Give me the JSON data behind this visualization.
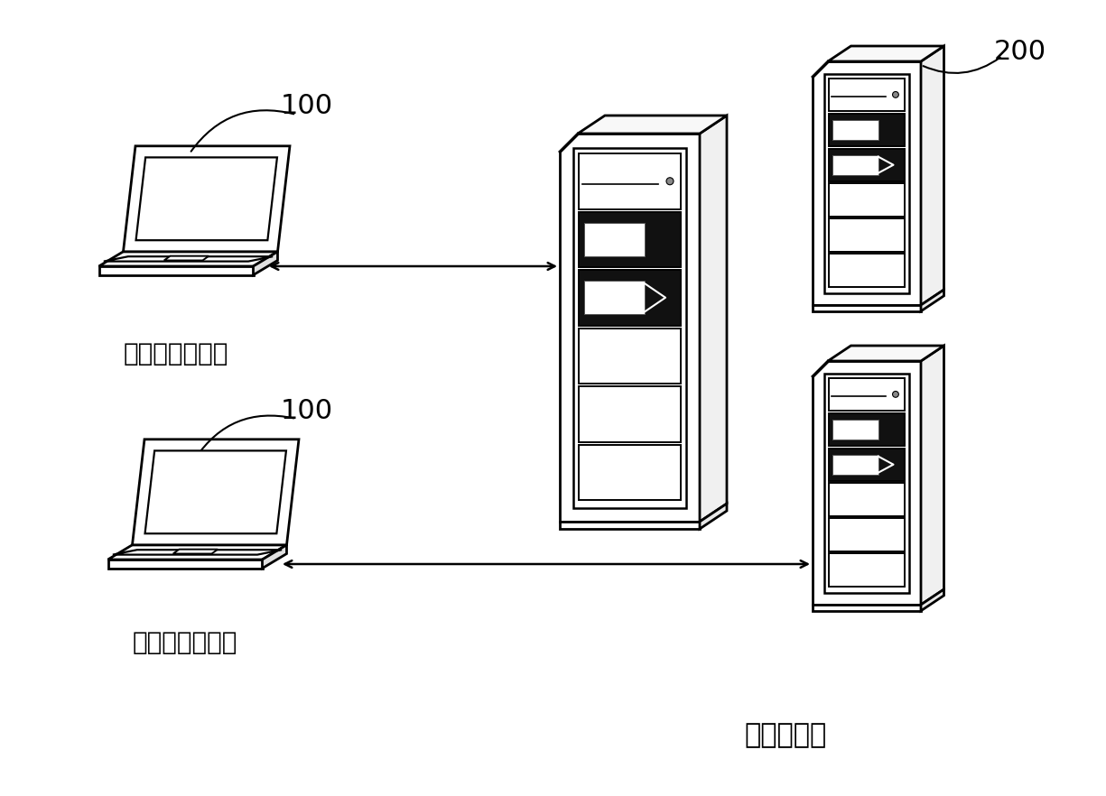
{
  "bg_color": "#ffffff",
  "label_client": "文本获取客户端",
  "label_server": "文本服务端",
  "label_100_top": "100",
  "label_100_bottom": "100",
  "label_200": "200",
  "label_fontsize": 20,
  "number_fontsize": 22,
  "line_color": "#000000",
  "lw": 2.0
}
